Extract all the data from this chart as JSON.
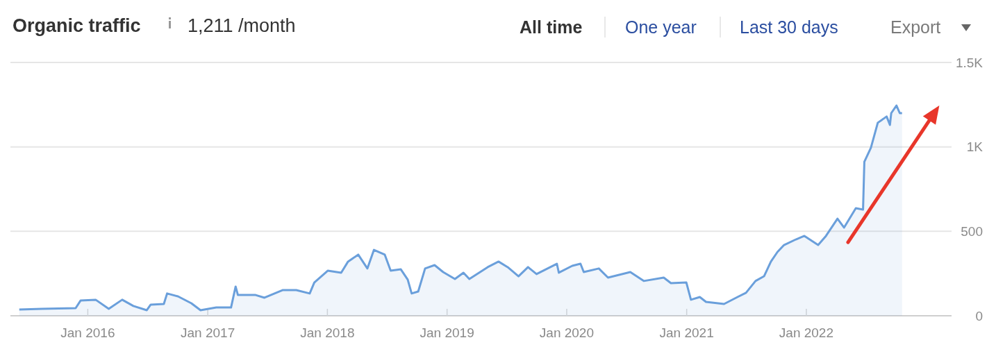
{
  "chart_data": {
    "type": "area",
    "title": "Organic traffic",
    "subtitle": "1,211 /month",
    "annotations": [
      "All time",
      "One year",
      "Last 30 days",
      "Export"
    ],
    "x": [
      "2015-06-06",
      "2015-08-14",
      "2015-11-25",
      "2015-12-10",
      "2016-01-25",
      "2016-03-05",
      "2016-04-15",
      "2016-05-19",
      "2016-06-29",
      "2016-07-11",
      "2016-08-20",
      "2016-08-30",
      "2016-10-02",
      "2016-11-12",
      "2016-12-10",
      "2017-01-27",
      "2017-03-13",
      "2017-03-27",
      "2017-04-03",
      "2017-05-27",
      "2017-06-23",
      "2017-08-17",
      "2017-09-28",
      "2017-11-08",
      "2017-11-22",
      "2018-01-02",
      "2018-02-12",
      "2018-03-05",
      "2018-04-05",
      "2018-05-03",
      "2018-05-23",
      "2018-06-25",
      "2018-07-13",
      "2018-08-13",
      "2018-09-03",
      "2018-09-15",
      "2018-10-05",
      "2018-10-26",
      "2018-11-24",
      "2018-12-20",
      "2019-01-25",
      "2019-02-20",
      "2019-03-10",
      "2019-05-05",
      "2019-06-07",
      "2019-07-05",
      "2019-08-07",
      "2019-09-05",
      "2019-10-01",
      "2019-11-12",
      "2019-12-02",
      "2019-12-08",
      "2020-01-18",
      "2020-02-12",
      "2020-02-22",
      "2020-04-08",
      "2020-05-06",
      "2020-07-13",
      "2020-08-23",
      "2020-10-23",
      "2020-11-14",
      "2020-12-31",
      "2021-01-14",
      "2021-02-10",
      "2021-03-01",
      "2021-04-25",
      "2021-06-05",
      "2021-07-01",
      "2021-07-30",
      "2021-08-25",
      "2021-09-15",
      "2021-10-05",
      "2021-10-25",
      "2021-11-30",
      "2021-12-26",
      "2022-02-06",
      "2022-03-02",
      "2022-04-06",
      "2022-04-26",
      "2022-06-01",
      "2022-06-23",
      "2022-06-27",
      "2022-07-17",
      "2022-08-07",
      "2022-09-03",
      "2022-09-13",
      "2022-09-17",
      "2022-10-03",
      "2022-10-13",
      "2022-10-20"
    ],
    "series": [
      {
        "color": "#6a9fdb",
        "values": [
          37,
          41,
          45,
          90,
          95,
          41,
          95,
          58,
          33,
          66,
          70,
          132,
          115,
          74,
          33,
          49,
          49,
          173,
          123,
          123,
          107,
          152,
          152,
          132,
          197,
          267,
          255,
          321,
          362,
          280,
          390,
          362,
          267,
          275,
          214,
          132,
          144,
          280,
          300,
          259,
          218,
          255,
          218,
          288,
          321,
          288,
          234,
          288,
          247,
          288,
          308,
          255,
          296,
          308,
          259,
          280,
          226,
          259,
          206,
          226,
          193,
          197,
          95,
          111,
          82,
          70,
          111,
          136,
          206,
          234,
          321,
          378,
          419,
          452,
          473,
          419,
          473,
          575,
          522,
          637,
          629,
          912,
          995,
          1143,
          1180,
          1130,
          1200,
          1245,
          1200,
          1200
        ]
      }
    ],
    "xlim": [
      "2015-05-10",
      "2023-03-20"
    ],
    "xticks": [
      {
        "value": "2016-01",
        "label": "Jan 2016"
      },
      {
        "value": "2017-01",
        "label": "Jan 2017"
      },
      {
        "value": "2018-01",
        "label": "Jan 2018"
      },
      {
        "value": "2019-01",
        "label": "Jan 2019"
      },
      {
        "value": "2020-01",
        "label": "Jan 2020"
      },
      {
        "value": "2021-01",
        "label": "Jan 2021"
      },
      {
        "value": "2022-01",
        "label": "Jan 2022"
      }
    ],
    "ylim": [
      0,
      1500
    ],
    "yticks": [
      0,
      500,
      {
        "value": 1000,
        "label": "1K"
      },
      {
        "value": 1500,
        "label": "1.5K"
      }
    ],
    "grid": "y"
  }
}
